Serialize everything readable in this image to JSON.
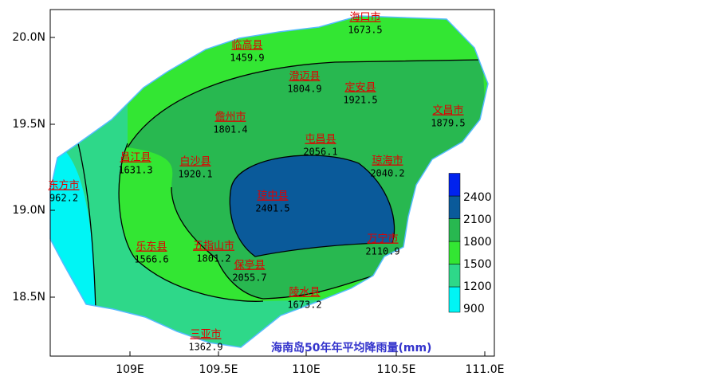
{
  "map": {
    "title": "海南岛50年年平均降雨量(mm)",
    "x_ticks": [
      "109E",
      "109.5E",
      "110E",
      "110.5E",
      "111.0E"
    ],
    "y_ticks": [
      "20.0N",
      "19.5N",
      "19.0N",
      "18.5N"
    ],
    "legend": [
      900,
      1200,
      1500,
      1800,
      2100,
      2400
    ],
    "stations": [
      {
        "name": "海口市",
        "value": 1673.5
      },
      {
        "name": "临高县",
        "value": 1459.9
      },
      {
        "name": "澄迈县",
        "value": 1804.9
      },
      {
        "name": "定安县",
        "value": 1921.5
      },
      {
        "name": "文昌市",
        "value": 1879.5
      },
      {
        "name": "儋州市",
        "value": 1801.4
      },
      {
        "name": "屯昌县",
        "value": 2056.1
      },
      {
        "name": "昌江县",
        "value": 1631.3
      },
      {
        "name": "白沙县",
        "value": 1920.1
      },
      {
        "name": "琼海市",
        "value": 2040.2
      },
      {
        "name": "东方市",
        "value": 962.2
      },
      {
        "name": "琼中县",
        "value": 2401.5
      },
      {
        "name": "万宁市",
        "value": 2110.9
      },
      {
        "name": "乐东县",
        "value": 1566.6
      },
      {
        "name": "五指山市",
        "value": 1801.2
      },
      {
        "name": "保亭县",
        "value": 2055.7
      },
      {
        "name": "陵水县",
        "value": 1673.2
      },
      {
        "name": "三亚市",
        "value": 1362.9
      }
    ]
  }
}
